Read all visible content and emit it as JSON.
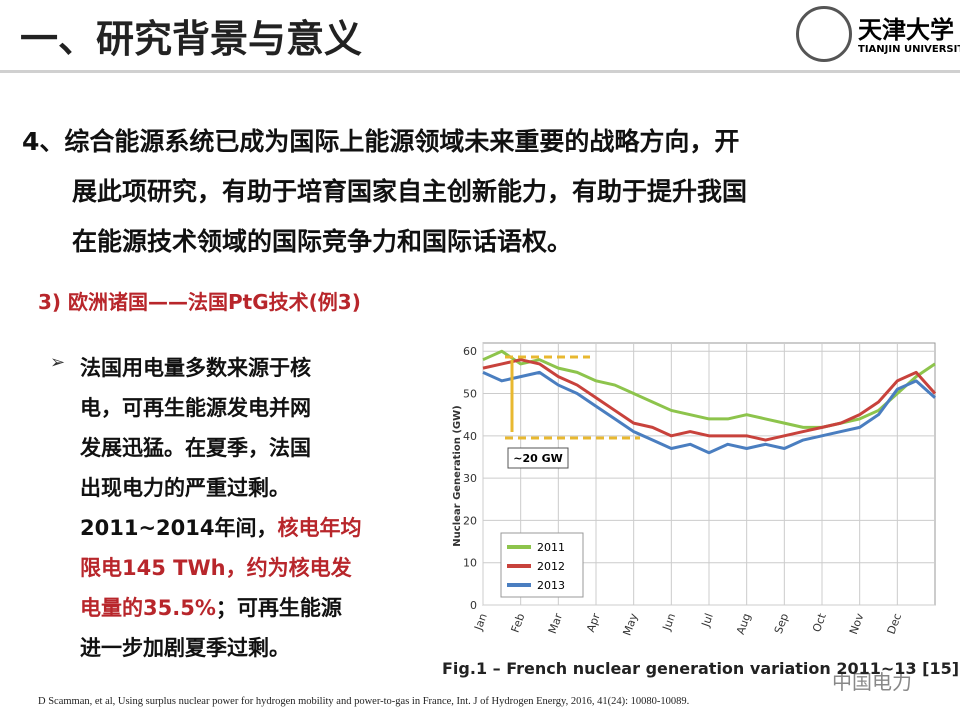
{
  "header": {
    "title": "一、研究背景与意义",
    "logo_cn": "天津大学",
    "logo_en": "TIANJIN UNIVERSITY"
  },
  "point": {
    "lines": [
      "4、综合能源系统已成为国际上能源领域未来重要的战略方向，开",
      "展此项研究，有助于培育国家自主创新能力，有助于提升我国",
      "在能源技术领域的国际竞争力和国际话语权。"
    ]
  },
  "subheading": "3) 欧洲诸国——法国PtG技术(例3)",
  "bullet": {
    "lines": [
      [
        {
          "text": "法国用电量多数来源于核",
          "highlight": false
        }
      ],
      [
        {
          "text": "电，可再生能源发电并网",
          "highlight": false
        }
      ],
      [
        {
          "text": "发展迅猛。在夏季，法国",
          "highlight": false
        }
      ],
      [
        {
          "text": "出现电力的严重过剩。",
          "highlight": false
        }
      ],
      [
        {
          "text": "2011~2014年间，",
          "highlight": false
        },
        {
          "text": "核电年均",
          "highlight": true
        }
      ],
      [
        {
          "text": "限电145 TWh，约为核电发",
          "highlight": true
        }
      ],
      [
        {
          "text": "电量的35.5%",
          "highlight": true
        },
        {
          "text": "；可再生能源",
          "highlight": false
        }
      ],
      [
        {
          "text": "进一步加剧夏季过剩。",
          "highlight": false
        }
      ]
    ]
  },
  "chart_data": {
    "type": "line",
    "y_label": "Nuclear Generation (GW)",
    "annotation": "~20 GW",
    "caption": "Fig.1 – French nuclear generation variation 2011~13 [15]",
    "x": [
      0,
      0.5,
      1,
      1.5,
      2,
      2.5,
      3,
      3.5,
      4,
      4.5,
      5,
      5.5,
      6,
      6.5,
      7,
      7.5,
      8,
      8.5,
      9,
      9.5,
      10,
      10.5,
      11,
      11.5,
      12
    ],
    "xlim": [
      0,
      12
    ],
    "xticks": [
      {
        "value": 0,
        "label": "Jan"
      },
      {
        "value": 1,
        "label": "Feb"
      },
      {
        "value": 2,
        "label": "Mar"
      },
      {
        "value": 3,
        "label": "Apr"
      },
      {
        "value": 4,
        "label": "May"
      },
      {
        "value": 5,
        "label": "Jun"
      },
      {
        "value": 6,
        "label": "Jul"
      },
      {
        "value": 7,
        "label": "Aug"
      },
      {
        "value": 8,
        "label": "Sep"
      },
      {
        "value": 9,
        "label": "Oct"
      },
      {
        "value": 10,
        "label": "Nov"
      },
      {
        "value": 11,
        "label": "Dec"
      }
    ],
    "ylim": [
      0,
      61
    ],
    "yticks": [
      0,
      10,
      20,
      30,
      40,
      50,
      60
    ],
    "grid": true,
    "legend": "lower left",
    "series": [
      {
        "name": "2011",
        "color": "#8dc44c",
        "values": [
          58,
          60,
          57,
          58,
          56,
          55,
          53,
          52,
          50,
          48,
          46,
          45,
          44,
          44,
          45,
          44,
          43,
          42,
          42,
          43,
          44,
          46,
          50,
          54,
          57
        ]
      },
      {
        "name": "2012",
        "color": "#c8423c",
        "values": [
          56,
          57,
          58,
          57,
          54,
          52,
          49,
          46,
          43,
          42,
          40,
          41,
          40,
          40,
          40,
          39,
          40,
          41,
          42,
          43,
          45,
          48,
          53,
          55,
          50
        ]
      },
      {
        "name": "2013",
        "color": "#4a7ec0",
        "values": [
          55,
          53,
          54,
          55,
          52,
          50,
          47,
          44,
          41,
          39,
          37,
          38,
          36,
          38,
          37,
          38,
          37,
          39,
          40,
          41,
          42,
          45,
          51,
          53,
          49
        ]
      }
    ]
  },
  "reference": "D Scamman, et al, Using surplus nuclear power for hydrogen mobility and power-to-gas in France, Int. J of Hydrogen Energy, 2016, 41(24): 10080-10089.",
  "watermark": "中国电力"
}
